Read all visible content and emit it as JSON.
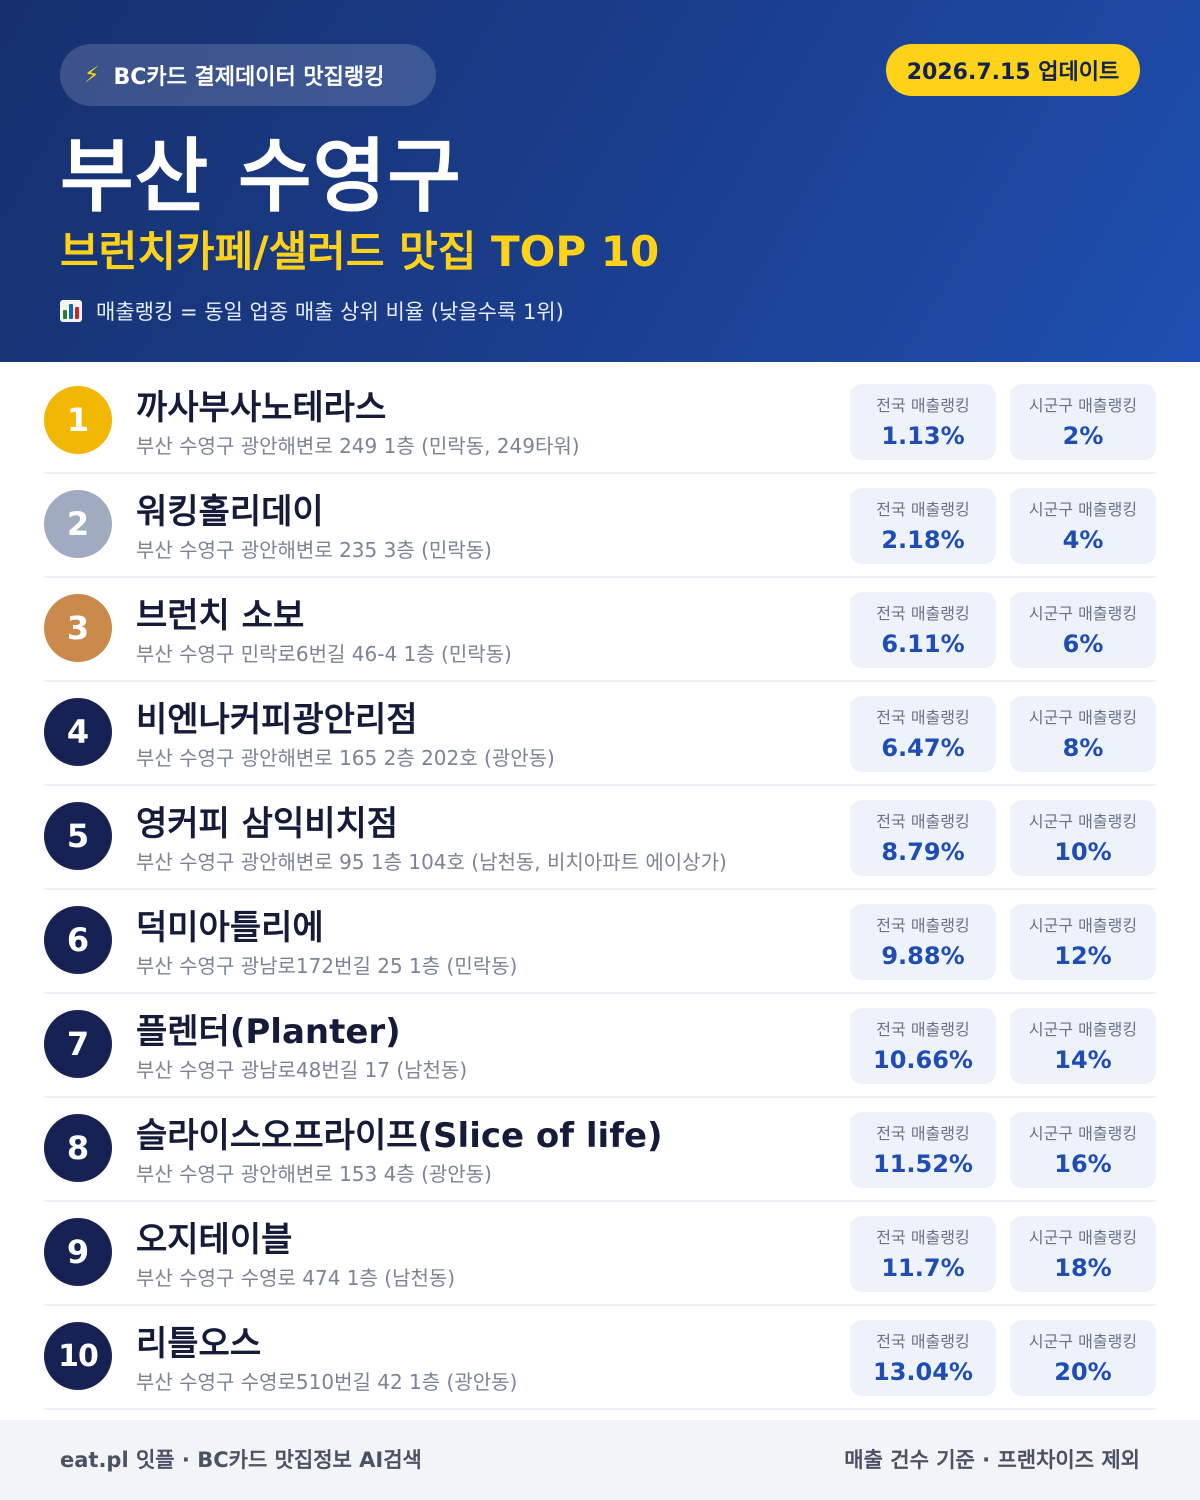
{
  "header": {
    "source_label": "BC카드 결제데이터 맛집랭킹",
    "source_icon": "lightning-icon",
    "update_label": "2026.7.15 업데이트",
    "title": "부산 수영구",
    "subtitle": "브런치카페/샐러드 맛집 TOP 10",
    "note_icon": "bar-chart-icon",
    "note": "매출랭킹 = 동일 업종 매출 상위 비율 (낮을수록 1위)"
  },
  "labels": {
    "national": "전국 매출랭킹",
    "district": "시군구 매출랭킹"
  },
  "colors": {
    "header_bg": "#1b3f8f",
    "accent_yellow": "#ffd21a",
    "rank_gold": "#f2b705",
    "rank_silver": "#a1abbf",
    "rank_bronze": "#c98a4b",
    "rank_default": "#152253",
    "value_blue": "#1f4db3"
  },
  "restaurants": [
    {
      "rank": "1",
      "name": "까사부사노테라스",
      "address": "부산 수영구 광안해변로 249 1층 (민락동, 249타워)",
      "national": "1.13%",
      "district": "2%"
    },
    {
      "rank": "2",
      "name": "워킹홀리데이",
      "address": "부산 수영구 광안해변로 235 3층 (민락동)",
      "national": "2.18%",
      "district": "4%"
    },
    {
      "rank": "3",
      "name": "브런치 소보",
      "address": "부산 수영구 민락로6번길 46-4 1층 (민락동)",
      "national": "6.11%",
      "district": "6%"
    },
    {
      "rank": "4",
      "name": "비엔나커피광안리점",
      "address": "부산 수영구 광안해변로 165 2층 202호 (광안동)",
      "national": "6.47%",
      "district": "8%"
    },
    {
      "rank": "5",
      "name": "영커피 삼익비치점",
      "address": "부산 수영구 광안해변로 95 1층 104호 (남천동, 비치아파트 에이상가)",
      "national": "8.79%",
      "district": "10%"
    },
    {
      "rank": "6",
      "name": "덕미아틀리에",
      "address": "부산 수영구 광남로172번길 25 1층 (민락동)",
      "national": "9.88%",
      "district": "12%"
    },
    {
      "rank": "7",
      "name": "플렌터(Planter)",
      "address": "부산 수영구 광남로48번길 17 (남천동)",
      "national": "10.66%",
      "district": "14%"
    },
    {
      "rank": "8",
      "name": "슬라이스오프라이프(Slice of life)",
      "address": "부산 수영구 광안해변로 153 4층 (광안동)",
      "national": "11.52%",
      "district": "16%"
    },
    {
      "rank": "9",
      "name": "오지테이블",
      "address": "부산 수영구 수영로 474 1층 (남천동)",
      "national": "11.7%",
      "district": "18%"
    },
    {
      "rank": "10",
      "name": "리틀오스",
      "address": "부산 수영구 수영로510번길 42 1층 (광안동)",
      "national": "13.04%",
      "district": "20%"
    }
  ],
  "footer": {
    "left": "eat.pl 잇플 · BC카드 맛집정보 AI검색",
    "right": "매출 건수 기준 · 프랜차이즈 제외"
  }
}
